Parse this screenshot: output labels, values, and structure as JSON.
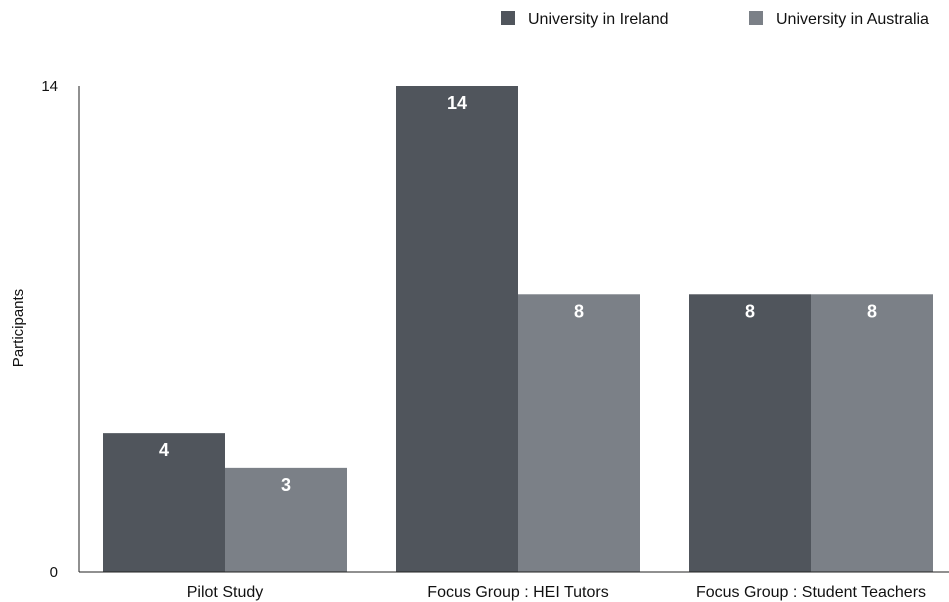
{
  "chart_data": {
    "type": "bar",
    "title": "",
    "xlabel": "",
    "ylabel": "Participants",
    "ylim": [
      0,
      14
    ],
    "yticks": [
      0,
      14
    ],
    "grid": false,
    "legend_position": "top-right",
    "categories": [
      "Pilot Study",
      "Focus Group : HEI Tutors",
      "Focus Group : Student Teachers"
    ],
    "series": [
      {
        "name": "University in Ireland",
        "values": [
          4,
          14,
          8
        ],
        "color": "#50555c"
      },
      {
        "name": "University in Australia",
        "values": [
          3,
          8,
          8
        ],
        "color": "#7b8087"
      }
    ],
    "data_labels": true
  }
}
